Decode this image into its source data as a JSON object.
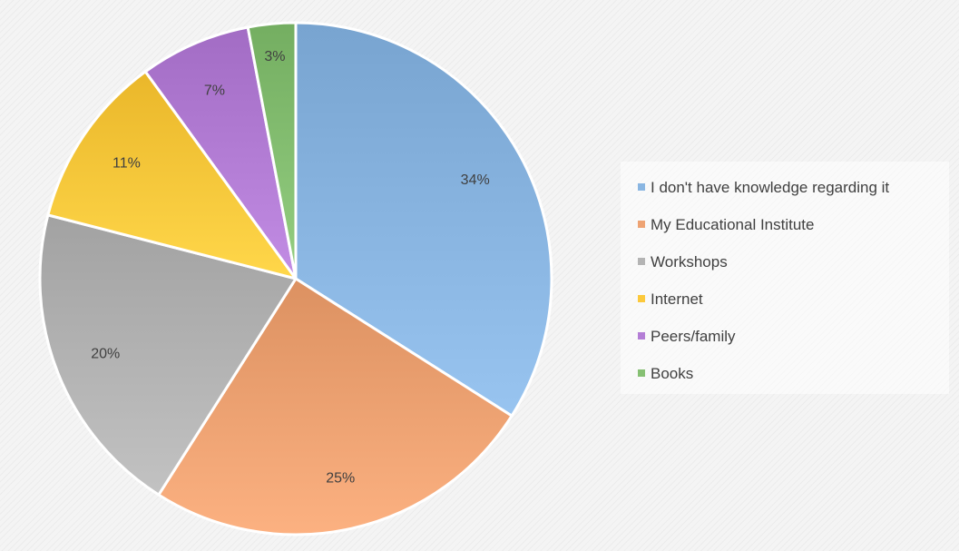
{
  "chart_data": {
    "type": "pie",
    "title": "",
    "legend_position": "right",
    "slices": [
      {
        "label": "I don't have knowledge regarding it",
        "value": 34,
        "value_label": "34%",
        "color": "#8ab6e2"
      },
      {
        "label": "My Educational Institute",
        "value": 25,
        "value_label": "25%",
        "color": "#eea373"
      },
      {
        "label": "Workshops",
        "value": 20,
        "value_label": "20%",
        "color": "#b4b4b4"
      },
      {
        "label": "Internet",
        "value": 11,
        "value_label": "11%",
        "color": "#fcc93c"
      },
      {
        "label": "Peers/family",
        "value": 7,
        "value_label": "7%",
        "color": "#b47ed6"
      },
      {
        "label": "Books",
        "value": 3,
        "value_label": "3%",
        "color": "#86c073"
      }
    ]
  }
}
